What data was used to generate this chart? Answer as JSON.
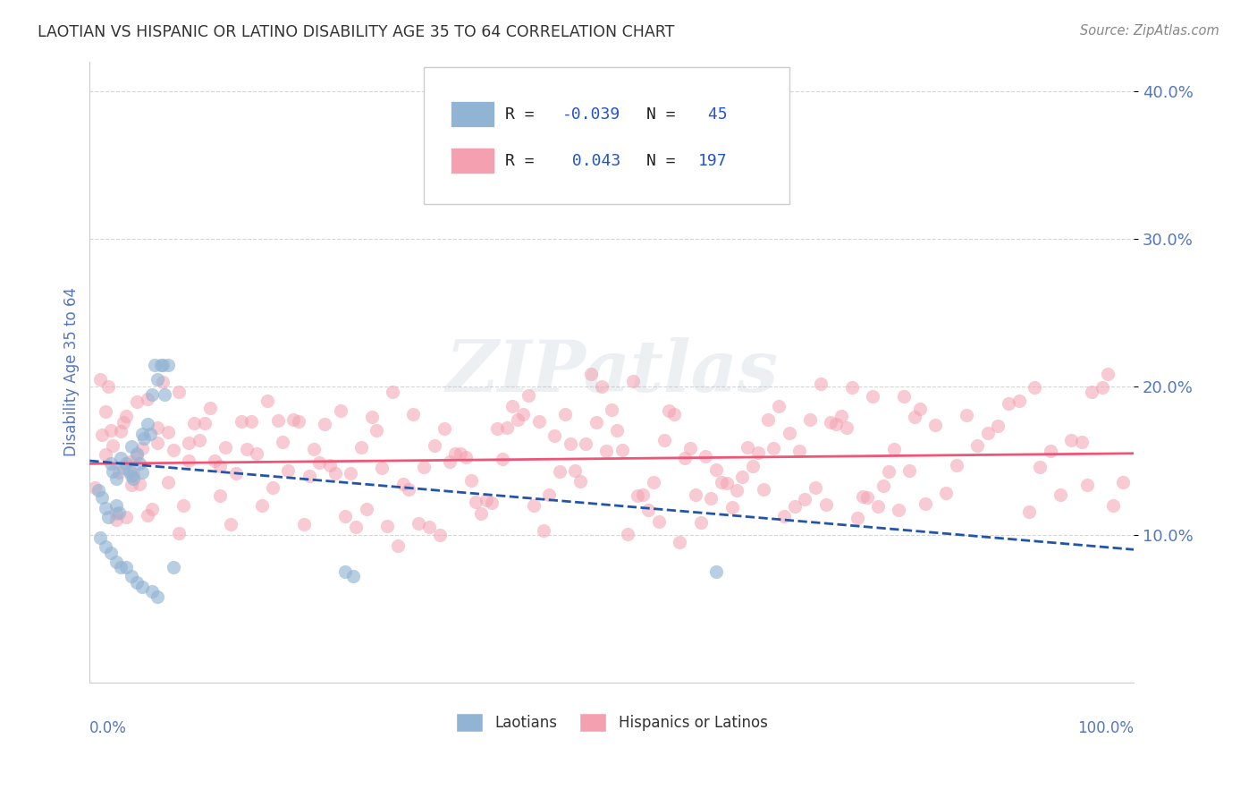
{
  "title": "LAOTIAN VS HISPANIC OR LATINO DISABILITY AGE 35 TO 64 CORRELATION CHART",
  "source": "Source: ZipAtlas.com",
  "ylabel": "Disability Age 35 to 64",
  "xmin": 0.0,
  "xmax": 1.0,
  "ymin": 0.0,
  "ymax": 0.42,
  "yticks": [
    0.1,
    0.2,
    0.3,
    0.4
  ],
  "ytick_labels": [
    "10.0%",
    "20.0%",
    "30.0%",
    "40.0%"
  ],
  "blue_color": "#92B4D4",
  "pink_color": "#F4A0B0",
  "blue_line_color": "#2255AA",
  "pink_line_color": "#EE5577",
  "title_color": "#333333",
  "axis_label_color": "#5577BB",
  "background_color": "#FFFFFF",
  "blue_trend_x0": 0.0,
  "blue_trend_x1": 1.0,
  "blue_trend_y0": 0.15,
  "blue_trend_y1": 0.09,
  "pink_trend_x0": 0.0,
  "pink_trend_x1": 1.0,
  "pink_trend_y0": 0.148,
  "pink_trend_y1": 0.155,
  "blue_x": [
    0.008,
    0.012,
    0.015,
    0.018,
    0.02,
    0.022,
    0.025,
    0.025,
    0.028,
    0.03,
    0.032,
    0.035,
    0.038,
    0.04,
    0.04,
    0.042,
    0.045,
    0.048,
    0.05,
    0.05,
    0.052,
    0.055,
    0.058,
    0.06,
    0.062,
    0.065,
    0.068,
    0.07,
    0.072,
    0.075,
    0.01,
    0.015,
    0.02,
    0.025,
    0.03,
    0.035,
    0.04,
    0.045,
    0.05,
    0.06,
    0.065,
    0.08,
    0.245,
    0.252,
    0.6
  ],
  "blue_y": [
    0.13,
    0.125,
    0.118,
    0.112,
    0.148,
    0.143,
    0.138,
    0.12,
    0.115,
    0.152,
    0.145,
    0.148,
    0.143,
    0.16,
    0.14,
    0.138,
    0.155,
    0.148,
    0.168,
    0.142,
    0.165,
    0.175,
    0.168,
    0.195,
    0.215,
    0.205,
    0.215,
    0.215,
    0.195,
    0.215,
    0.098,
    0.092,
    0.088,
    0.082,
    0.078,
    0.078,
    0.072,
    0.068,
    0.065,
    0.062,
    0.058,
    0.078,
    0.075,
    0.072,
    0.075
  ],
  "pink_x": [
    0.005,
    0.01,
    0.012,
    0.015,
    0.018,
    0.02,
    0.022,
    0.025,
    0.028,
    0.03,
    0.032,
    0.035,
    0.038,
    0.04,
    0.042,
    0.045,
    0.048,
    0.05,
    0.055,
    0.06,
    0.065,
    0.07,
    0.075,
    0.08,
    0.085,
    0.09,
    0.095,
    0.1,
    0.11,
    0.12,
    0.125,
    0.13,
    0.14,
    0.15,
    0.16,
    0.17,
    0.18,
    0.19,
    0.2,
    0.21,
    0.22,
    0.23,
    0.24,
    0.25,
    0.26,
    0.27,
    0.28,
    0.29,
    0.3,
    0.31,
    0.32,
    0.33,
    0.34,
    0.35,
    0.36,
    0.37,
    0.38,
    0.39,
    0.4,
    0.41,
    0.42,
    0.43,
    0.44,
    0.45,
    0.46,
    0.47,
    0.48,
    0.49,
    0.5,
    0.51,
    0.52,
    0.53,
    0.54,
    0.55,
    0.56,
    0.57,
    0.58,
    0.59,
    0.6,
    0.61,
    0.62,
    0.63,
    0.64,
    0.65,
    0.66,
    0.67,
    0.68,
    0.69,
    0.7,
    0.71,
    0.72,
    0.73,
    0.74,
    0.75,
    0.76,
    0.77,
    0.78,
    0.79,
    0.8,
    0.81,
    0.82,
    0.83,
    0.84,
    0.85,
    0.86,
    0.87,
    0.88,
    0.89,
    0.9,
    0.91,
    0.92,
    0.93,
    0.94,
    0.95,
    0.96,
    0.97,
    0.98,
    0.99,
    0.015,
    0.025,
    0.035,
    0.045,
    0.055,
    0.065,
    0.075,
    0.085,
    0.095,
    0.105,
    0.115,
    0.125,
    0.135,
    0.145,
    0.155,
    0.165,
    0.175,
    0.185,
    0.195,
    0.205,
    0.215,
    0.225,
    0.235,
    0.245,
    0.255,
    0.265,
    0.275,
    0.285,
    0.295,
    0.305,
    0.315,
    0.325,
    0.335,
    0.345,
    0.355,
    0.365,
    0.375,
    0.385,
    0.395,
    0.405,
    0.415,
    0.425,
    0.435,
    0.445,
    0.455,
    0.465,
    0.475,
    0.485,
    0.495,
    0.505,
    0.515,
    0.525,
    0.535,
    0.545,
    0.555,
    0.565,
    0.575,
    0.585,
    0.595,
    0.605,
    0.615,
    0.625,
    0.635,
    0.645,
    0.655,
    0.665,
    0.675,
    0.685,
    0.695,
    0.705,
    0.715,
    0.725,
    0.735,
    0.745,
    0.755,
    0.765,
    0.775,
    0.785,
    0.795,
    0.905,
    0.955,
    0.975
  ],
  "pink_y": [
    0.165,
    0.175,
    0.168,
    0.158,
    0.152,
    0.162,
    0.155,
    0.148,
    0.158,
    0.165,
    0.155,
    0.148,
    0.155,
    0.168,
    0.155,
    0.148,
    0.155,
    0.158,
    0.148,
    0.155,
    0.148,
    0.158,
    0.155,
    0.148,
    0.155,
    0.148,
    0.155,
    0.148,
    0.155,
    0.148,
    0.168,
    0.155,
    0.148,
    0.155,
    0.162,
    0.155,
    0.148,
    0.155,
    0.165,
    0.155,
    0.148,
    0.155,
    0.165,
    0.148,
    0.158,
    0.155,
    0.148,
    0.155,
    0.158,
    0.155,
    0.148,
    0.162,
    0.155,
    0.148,
    0.155,
    0.162,
    0.155,
    0.148,
    0.165,
    0.155,
    0.148,
    0.155,
    0.162,
    0.155,
    0.148,
    0.155,
    0.162,
    0.155,
    0.148,
    0.155,
    0.168,
    0.155,
    0.148,
    0.162,
    0.155,
    0.148,
    0.155,
    0.162,
    0.155,
    0.148,
    0.155,
    0.162,
    0.155,
    0.148,
    0.155,
    0.162,
    0.155,
    0.148,
    0.162,
    0.155,
    0.148,
    0.155,
    0.162,
    0.155,
    0.148,
    0.155,
    0.162,
    0.155,
    0.148,
    0.155,
    0.162,
    0.155,
    0.148,
    0.162,
    0.155,
    0.148,
    0.155,
    0.162,
    0.155,
    0.148,
    0.155,
    0.162,
    0.155,
    0.148,
    0.162,
    0.155,
    0.148,
    0.155,
    0.135,
    0.138,
    0.132,
    0.142,
    0.138,
    0.142,
    0.132,
    0.138,
    0.142,
    0.132,
    0.138,
    0.142,
    0.132,
    0.138,
    0.135,
    0.142,
    0.132,
    0.138,
    0.142,
    0.132,
    0.138,
    0.142,
    0.132,
    0.138,
    0.142,
    0.132,
    0.138,
    0.142,
    0.132,
    0.138,
    0.142,
    0.132,
    0.138,
    0.142,
    0.132,
    0.138,
    0.142,
    0.132,
    0.138,
    0.142,
    0.132,
    0.138,
    0.142,
    0.132,
    0.138,
    0.142,
    0.132,
    0.138,
    0.142,
    0.132,
    0.138,
    0.142,
    0.132,
    0.138,
    0.142,
    0.132,
    0.138,
    0.142,
    0.132,
    0.138,
    0.142,
    0.132,
    0.138,
    0.142,
    0.132,
    0.138,
    0.142,
    0.132,
    0.138,
    0.142,
    0.132,
    0.138,
    0.142,
    0.132,
    0.138,
    0.142,
    0.132,
    0.138,
    0.142,
    0.205,
    0.115,
    0.195
  ]
}
